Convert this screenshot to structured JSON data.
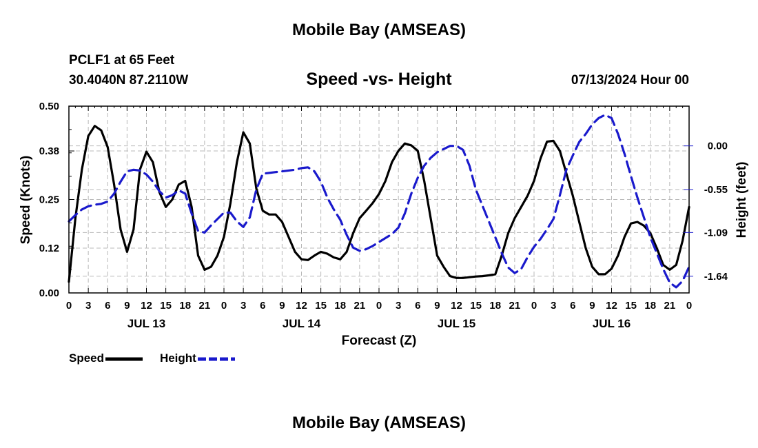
{
  "title": "Mobile Bay (AMSEAS)",
  "station": "PCLF1 at 65 Feet",
  "coords": "30.4040N  87.2110W",
  "forecast_time": "07/13/2024 Hour 00",
  "footer_title": "Mobile Bay (AMSEAS)",
  "colors": {
    "speed": "#000000",
    "height": "#1a1acc",
    "grid": "#b8b8b8"
  },
  "chart_data": {
    "type": "line",
    "title": "Speed -vs- Height",
    "xlabel": "Forecast (Z)",
    "ylabel_left": "Speed (Knots)",
    "ylabel_right": "Height (feet)",
    "x_range_hours": [
      0,
      96
    ],
    "x_tick_labels": [
      "0",
      "3",
      "6",
      "9",
      "12",
      "15",
      "18",
      "21",
      "0",
      "3",
      "6",
      "9",
      "12",
      "15",
      "18",
      "21",
      "0",
      "3",
      "6",
      "9",
      "12",
      "15",
      "18",
      "21",
      "0",
      "3",
      "6",
      "9",
      "12",
      "15",
      "18",
      "21",
      "0"
    ],
    "day_labels": [
      {
        "label": "JUL 13",
        "hour": 12
      },
      {
        "label": "JUL 14",
        "hour": 36
      },
      {
        "label": "JUL 15",
        "hour": 60
      },
      {
        "label": "JUL 16",
        "hour": 84
      }
    ],
    "y_left": {
      "range": [
        0,
        0.5
      ],
      "ticks": [
        0,
        0.12,
        0.25,
        0.38,
        0.5
      ],
      "tick_labels": [
        "0.00",
        "0.12",
        "0.25",
        "0.38",
        "0.50"
      ]
    },
    "y_right": {
      "range": [
        -1.85,
        0.5
      ],
      "ticks": [
        -1.64,
        -1.09,
        -0.55,
        0.0
      ],
      "tick_labels": [
        "-1.64",
        "-1.09",
        "-0.55",
        "0.00"
      ]
    },
    "grid": true,
    "legend": [
      {
        "name": "Speed",
        "style": "solid"
      },
      {
        "name": "Height",
        "style": "dashed"
      }
    ],
    "series": [
      {
        "name": "Speed",
        "axis": "left",
        "points": [
          [
            0,
            0.03
          ],
          [
            1,
            0.2
          ],
          [
            2,
            0.33
          ],
          [
            3,
            0.42
          ],
          [
            4,
            0.447
          ],
          [
            5,
            0.435
          ],
          [
            6,
            0.39
          ],
          [
            7,
            0.29
          ],
          [
            8,
            0.17
          ],
          [
            9,
            0.11
          ],
          [
            10,
            0.17
          ],
          [
            11,
            0.33
          ],
          [
            12,
            0.378
          ],
          [
            13,
            0.35
          ],
          [
            14,
            0.27
          ],
          [
            15,
            0.23
          ],
          [
            16,
            0.25
          ],
          [
            17,
            0.29
          ],
          [
            18,
            0.3
          ],
          [
            19,
            0.23
          ],
          [
            20,
            0.1
          ],
          [
            21,
            0.062
          ],
          [
            22,
            0.07
          ],
          [
            23,
            0.1
          ],
          [
            24,
            0.15
          ],
          [
            25,
            0.24
          ],
          [
            26,
            0.35
          ],
          [
            27,
            0.43
          ],
          [
            28,
            0.4
          ],
          [
            29,
            0.28
          ],
          [
            30,
            0.22
          ],
          [
            31,
            0.21
          ],
          [
            32,
            0.21
          ],
          [
            33,
            0.19
          ],
          [
            34,
            0.15
          ],
          [
            35,
            0.11
          ],
          [
            36,
            0.09
          ],
          [
            37,
            0.088
          ],
          [
            38,
            0.1
          ],
          [
            39,
            0.11
          ],
          [
            40,
            0.105
          ],
          [
            41,
            0.095
          ],
          [
            42,
            0.09
          ],
          [
            43,
            0.11
          ],
          [
            44,
            0.16
          ],
          [
            45,
            0.2
          ],
          [
            46,
            0.22
          ],
          [
            47,
            0.24
          ],
          [
            48,
            0.265
          ],
          [
            49,
            0.3
          ],
          [
            50,
            0.35
          ],
          [
            51,
            0.38
          ],
          [
            52,
            0.4
          ],
          [
            53,
            0.395
          ],
          [
            54,
            0.38
          ],
          [
            55,
            0.3
          ],
          [
            56,
            0.2
          ],
          [
            57,
            0.1
          ],
          [
            58,
            0.07
          ],
          [
            59,
            0.045
          ],
          [
            60,
            0.04
          ],
          [
            61,
            0.04
          ],
          [
            62,
            0.042
          ],
          [
            63,
            0.044
          ],
          [
            64,
            0.045
          ],
          [
            65,
            0.047
          ],
          [
            66,
            0.05
          ],
          [
            67,
            0.1
          ],
          [
            68,
            0.16
          ],
          [
            69,
            0.2
          ],
          [
            70,
            0.23
          ],
          [
            71,
            0.26
          ],
          [
            72,
            0.3
          ],
          [
            73,
            0.36
          ],
          [
            74,
            0.405
          ],
          [
            75,
            0.407
          ],
          [
            76,
            0.38
          ],
          [
            77,
            0.32
          ],
          [
            78,
            0.26
          ],
          [
            79,
            0.19
          ],
          [
            80,
            0.12
          ],
          [
            81,
            0.07
          ],
          [
            82,
            0.05
          ],
          [
            83,
            0.05
          ],
          [
            84,
            0.065
          ],
          [
            85,
            0.1
          ],
          [
            86,
            0.15
          ],
          [
            87,
            0.186
          ],
          [
            88,
            0.19
          ],
          [
            89,
            0.18
          ],
          [
            90,
            0.16
          ],
          [
            91,
            0.12
          ],
          [
            92,
            0.075
          ],
          [
            93,
            0.062
          ],
          [
            94,
            0.075
          ],
          [
            95,
            0.14
          ],
          [
            96,
            0.23
          ]
        ]
      },
      {
        "name": "Height",
        "axis": "right",
        "points": [
          [
            0,
            -0.95
          ],
          [
            1,
            -0.87
          ],
          [
            2,
            -0.8
          ],
          [
            3,
            -0.76
          ],
          [
            4,
            -0.74
          ],
          [
            5,
            -0.73
          ],
          [
            6,
            -0.7
          ],
          [
            7,
            -0.6
          ],
          [
            8,
            -0.45
          ],
          [
            9,
            -0.32
          ],
          [
            10,
            -0.3
          ],
          [
            11,
            -0.31
          ],
          [
            12,
            -0.36
          ],
          [
            13,
            -0.45
          ],
          [
            14,
            -0.57
          ],
          [
            15,
            -0.65
          ],
          [
            16,
            -0.62
          ],
          [
            17,
            -0.56
          ],
          [
            18,
            -0.6
          ],
          [
            19,
            -0.85
          ],
          [
            20,
            -1.07
          ],
          [
            21,
            -1.09
          ],
          [
            22,
            -1.0
          ],
          [
            23,
            -0.92
          ],
          [
            24,
            -0.84
          ],
          [
            25,
            -0.84
          ],
          [
            26,
            -0.95
          ],
          [
            27,
            -1.02
          ],
          [
            28,
            -0.9
          ],
          [
            29,
            -0.55
          ],
          [
            30,
            -0.35
          ],
          [
            31,
            -0.34
          ],
          [
            32,
            -0.33
          ],
          [
            33,
            -0.32
          ],
          [
            34,
            -0.31
          ],
          [
            35,
            -0.3
          ],
          [
            36,
            -0.28
          ],
          [
            37,
            -0.27
          ],
          [
            38,
            -0.32
          ],
          [
            39,
            -0.45
          ],
          [
            40,
            -0.65
          ],
          [
            41,
            -0.8
          ],
          [
            42,
            -0.93
          ],
          [
            43,
            -1.12
          ],
          [
            44,
            -1.28
          ],
          [
            45,
            -1.32
          ],
          [
            46,
            -1.3
          ],
          [
            47,
            -1.26
          ],
          [
            48,
            -1.21
          ],
          [
            49,
            -1.16
          ],
          [
            50,
            -1.11
          ],
          [
            51,
            -1.03
          ],
          [
            52,
            -0.85
          ],
          [
            53,
            -0.6
          ],
          [
            54,
            -0.4
          ],
          [
            55,
            -0.25
          ],
          [
            56,
            -0.15
          ],
          [
            57,
            -0.08
          ],
          [
            58,
            -0.04
          ],
          [
            59,
            0.0
          ],
          [
            60,
            0.0
          ],
          [
            61,
            -0.05
          ],
          [
            62,
            -0.25
          ],
          [
            63,
            -0.55
          ],
          [
            64,
            -0.75
          ],
          [
            65,
            -0.95
          ],
          [
            66,
            -1.15
          ],
          [
            67,
            -1.35
          ],
          [
            68,
            -1.53
          ],
          [
            69,
            -1.6
          ],
          [
            70,
            -1.55
          ],
          [
            71,
            -1.4
          ],
          [
            72,
            -1.27
          ],
          [
            73,
            -1.17
          ],
          [
            74,
            -1.05
          ],
          [
            75,
            -0.92
          ],
          [
            76,
            -0.62
          ],
          [
            77,
            -0.3
          ],
          [
            78,
            -0.12
          ],
          [
            79,
            0.05
          ],
          [
            80,
            0.15
          ],
          [
            81,
            0.27
          ],
          [
            82,
            0.35
          ],
          [
            83,
            0.39
          ],
          [
            84,
            0.35
          ],
          [
            85,
            0.15
          ],
          [
            86,
            -0.1
          ],
          [
            87,
            -0.38
          ],
          [
            88,
            -0.65
          ],
          [
            89,
            -0.9
          ],
          [
            90,
            -1.15
          ],
          [
            91,
            -1.35
          ],
          [
            92,
            -1.55
          ],
          [
            93,
            -1.72
          ],
          [
            94,
            -1.78
          ],
          [
            95,
            -1.7
          ],
          [
            96,
            -1.52
          ]
        ]
      }
    ]
  }
}
